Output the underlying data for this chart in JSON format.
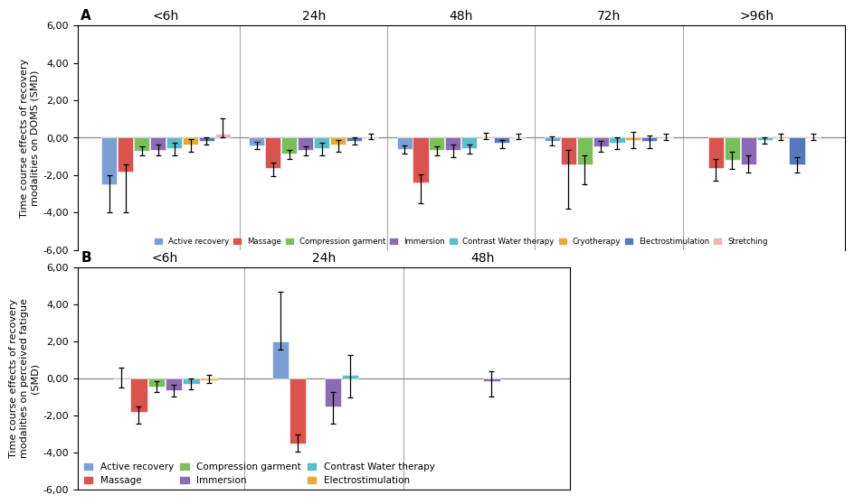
{
  "panel_A": {
    "title": "A",
    "ylabel": "Time course effects of recovery\nmodalities on DOMS (SMD)",
    "ylim": [
      -6.0,
      6.0
    ],
    "yticks": [
      -6.0,
      -4.0,
      -2.0,
      0.0,
      2.0,
      4.0,
      6.0
    ],
    "time_points": [
      "<6h",
      "24h",
      "48h",
      "72h",
      ">96h"
    ],
    "series": [
      {
        "name": "Active recovery",
        "color": "#7B9FD4",
        "values": [
          -2.5,
          -0.4,
          -0.6,
          -0.15,
          null
        ],
        "errors_lo": [
          1.5,
          0.2,
          0.25,
          0.25,
          null
        ],
        "errors_hi": [
          0.5,
          0.2,
          0.2,
          0.2,
          null
        ]
      },
      {
        "name": "Massage",
        "color": "#D9534F",
        "values": [
          -1.8,
          -1.6,
          -2.4,
          -1.4,
          -1.6
        ],
        "errors_lo": [
          2.2,
          0.45,
          1.1,
          2.4,
          0.7
        ],
        "errors_hi": [
          0.4,
          0.25,
          0.45,
          0.75,
          0.45
        ]
      },
      {
        "name": "Compression garment",
        "color": "#7BBF5A",
        "values": [
          -0.7,
          -0.85,
          -0.65,
          -1.4,
          -1.2
        ],
        "errors_lo": [
          0.25,
          0.28,
          0.28,
          1.1,
          0.45
        ],
        "errors_hi": [
          0.25,
          0.18,
          0.18,
          0.45,
          0.45
        ]
      },
      {
        "name": "Immersion",
        "color": "#8B6BB5",
        "values": [
          -0.65,
          -0.65,
          -0.65,
          -0.45,
          -1.4
        ],
        "errors_lo": [
          0.28,
          0.28,
          0.38,
          0.28,
          0.45
        ],
        "errors_hi": [
          0.28,
          0.18,
          0.28,
          0.28,
          0.45
        ]
      },
      {
        "name": "Contrast Water therapy",
        "color": "#5BBCCC",
        "values": [
          -0.55,
          -0.55,
          -0.55,
          -0.28,
          -0.12
        ],
        "errors_lo": [
          0.38,
          0.38,
          0.28,
          0.32,
          0.18
        ],
        "errors_hi": [
          0.28,
          0.28,
          0.18,
          0.32,
          0.14
        ]
      },
      {
        "name": "Cryotherapy",
        "color": "#E8A838",
        "values": [
          -0.38,
          -0.38,
          0.05,
          -0.12,
          0.05
        ],
        "errors_lo": [
          0.38,
          0.38,
          0.14,
          0.42,
          0.18
        ],
        "errors_hi": [
          0.32,
          0.28,
          0.22,
          0.42,
          0.18
        ]
      },
      {
        "name": "Electrostimulation",
        "color": "#5577BB",
        "values": [
          -0.18,
          -0.18,
          -0.28,
          -0.18,
          -1.4
        ],
        "errors_lo": [
          0.18,
          0.18,
          0.28,
          0.38,
          0.45
        ],
        "errors_hi": [
          0.18,
          0.18,
          0.18,
          0.32,
          0.38
        ]
      },
      {
        "name": "Stretching",
        "color": "#E8B8B8",
        "values": [
          0.2,
          0.05,
          0.05,
          0.05,
          0.05
        ],
        "errors_lo": [
          0.18,
          0.14,
          0.14,
          0.18,
          0.18
        ],
        "errors_hi": [
          0.85,
          0.18,
          0.18,
          0.18,
          0.18
        ]
      }
    ]
  },
  "panel_B": {
    "title": "B",
    "ylabel": "Time course effects of recovery\nmodalities on perceived fatigue\n(SMD)",
    "ylim": [
      -6.0,
      6.0
    ],
    "yticks": [
      -6.0,
      -4.0,
      -2.0,
      0.0,
      2.0,
      4.0,
      6.0
    ],
    "time_points": [
      "<6h",
      "24h",
      "48h"
    ],
    "series": [
      {
        "name": "Active recovery",
        "color": "#7B9FD4",
        "values": [
          0.05,
          2.0,
          null
        ],
        "errors_lo": [
          0.55,
          0.45,
          null
        ],
        "errors_hi": [
          0.55,
          2.7,
          null
        ]
      },
      {
        "name": "Massage",
        "color": "#D9534F",
        "values": [
          -1.8,
          -3.5,
          null
        ],
        "errors_lo": [
          0.65,
          0.45,
          null
        ],
        "errors_hi": [
          0.28,
          0.45,
          null
        ]
      },
      {
        "name": "Compression garment",
        "color": "#7BBF5A",
        "values": [
          -0.45,
          null,
          null
        ],
        "errors_lo": [
          0.28,
          null,
          null
        ],
        "errors_hi": [
          0.28,
          null,
          null
        ]
      },
      {
        "name": "Immersion",
        "color": "#8B6BB5",
        "values": [
          -0.65,
          -1.5,
          -0.15
        ],
        "errors_lo": [
          0.32,
          0.95,
          0.85
        ],
        "errors_hi": [
          0.32,
          0.75,
          0.55
        ]
      },
      {
        "name": "Contrast Water therapy",
        "color": "#5BBCCC",
        "values": [
          -0.28,
          0.2,
          null
        ],
        "errors_lo": [
          0.32,
          1.25,
          null
        ],
        "errors_hi": [
          0.28,
          1.05,
          null
        ]
      },
      {
        "name": "Electrostimulation",
        "color": "#E8A838",
        "values": [
          -0.08,
          null,
          null
        ],
        "errors_lo": [
          0.18,
          null,
          null
        ],
        "errors_hi": [
          0.28,
          null,
          null
        ]
      }
    ]
  },
  "background_color": "#FFFFFF",
  "zero_line_color": "#888888",
  "sep_line_color": "#AAAAAA"
}
